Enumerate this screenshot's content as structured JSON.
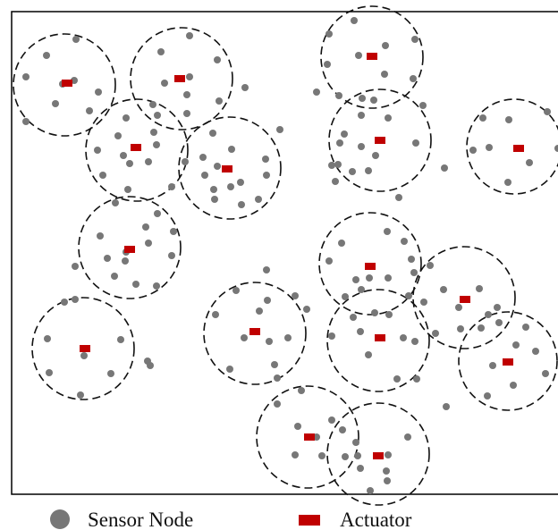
{
  "colors": {
    "sensor": "#777777",
    "actuator": "#c00000",
    "boundary": "#000000",
    "range_circle": "#111111"
  },
  "legend": {
    "sensor_label": "Sensor Node",
    "actuator_label": "Actuator",
    "sensor_icon": "gray-circle-icon",
    "actuator_icon": "red-square-icon"
  }
}
